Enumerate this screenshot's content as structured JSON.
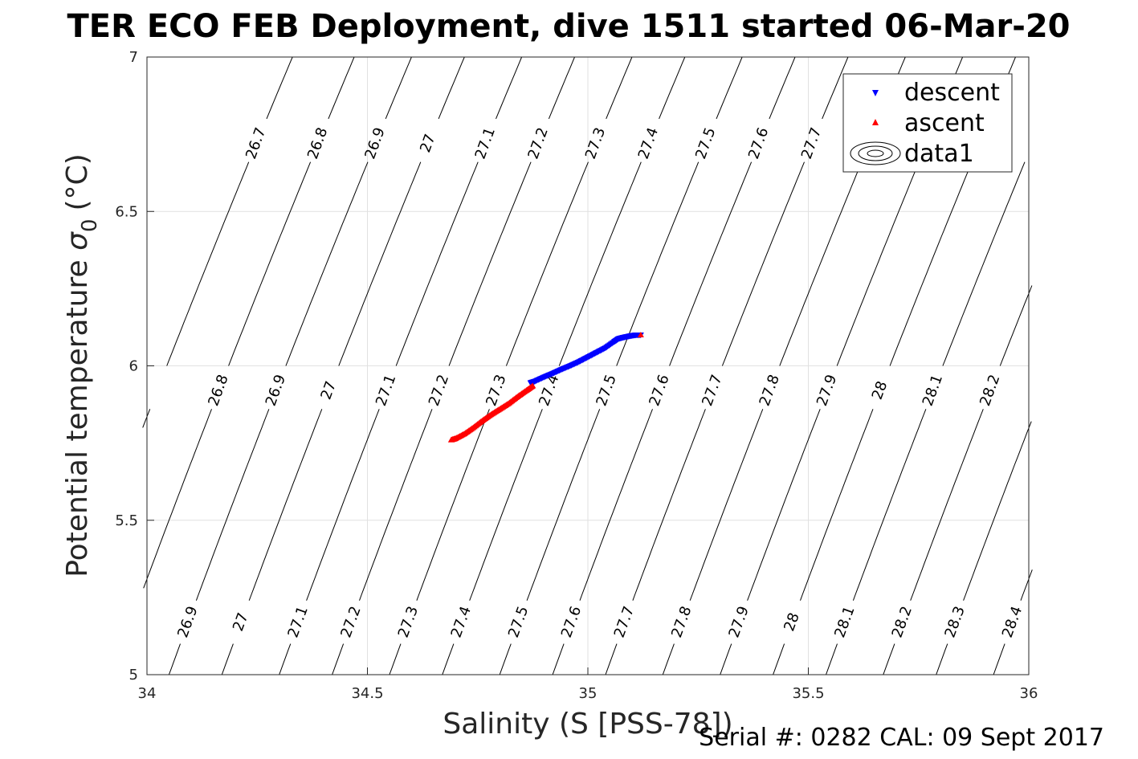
{
  "chart_data": {
    "type": "scatter",
    "title": "TER ECO FEB Deployment, dive 1511 started 06-Mar-20",
    "xlabel": "Salinity (S [PSS-78])",
    "ylabel_main": "Potential temperature",
    "ylabel_sym": "σ",
    "ylabel_sub": "0",
    "ylabel_unit": "(°C)",
    "xlim": [
      34,
      36
    ],
    "ylim": [
      5,
      7
    ],
    "xticks": [
      "34",
      "34.5",
      "35",
      "35.5",
      "36"
    ],
    "yticks": [
      "5",
      "5.5",
      "6",
      "6.5",
      "7"
    ],
    "grid": true,
    "legend_position": "top-right",
    "legend": [
      "descent",
      "ascent",
      "data1"
    ],
    "footer": "Serial #: 0282  CAL: 09 Sept 2017",
    "colors": {
      "descent": "#0000ff",
      "ascent": "#ff0000",
      "contour": "#000000",
      "grid": "#e1e1e1"
    },
    "series": [
      {
        "name": "descent",
        "marker": "triangle-down",
        "color": "#0000ff",
        "points": [
          [
            34.87,
            5.945
          ],
          [
            34.88,
            5.95
          ],
          [
            34.9,
            5.963
          ],
          [
            34.92,
            5.975
          ],
          [
            34.94,
            5.988
          ],
          [
            34.96,
            6.0
          ],
          [
            34.98,
            6.013
          ],
          [
            35.0,
            6.028
          ],
          [
            35.02,
            6.043
          ],
          [
            35.04,
            6.058
          ],
          [
            35.06,
            6.078
          ],
          [
            35.07,
            6.088
          ],
          [
            35.08,
            6.092
          ],
          [
            35.09,
            6.095
          ],
          [
            35.1,
            6.098
          ],
          [
            35.11,
            6.1
          ],
          [
            35.12,
            6.1
          ]
        ]
      },
      {
        "name": "ascent",
        "marker": "triangle-up",
        "color": "#ff0000",
        "points": [
          [
            34.69,
            5.76
          ],
          [
            34.7,
            5.765
          ],
          [
            34.72,
            5.78
          ],
          [
            34.74,
            5.8
          ],
          [
            34.76,
            5.822
          ],
          [
            34.78,
            5.842
          ],
          [
            34.8,
            5.86
          ],
          [
            34.82,
            5.878
          ],
          [
            34.84,
            5.9
          ],
          [
            34.86,
            5.92
          ],
          [
            34.875,
            5.935
          ],
          [
            35.12,
            6.1
          ]
        ]
      }
    ],
    "contours": [
      {
        "label": "26.7",
        "x": [
          34.03,
          34.2
        ]
      },
      {
        "label": "26.8",
        "x": [
          34.1,
          34.32
        ],
        "mid": 34.04
      },
      {
        "label": "26.9",
        "x": [
          34.23,
          34.43
        ],
        "mid": 34.17,
        "bottom": 34.05
      },
      {
        "label": "27",
        "x": [
          34.36,
          34.55
        ],
        "mid": 34.3,
        "bottom": 34.17
      },
      {
        "label": "27.1",
        "x": [
          34.48,
          34.67
        ],
        "mid": 34.42,
        "bottom": 34.3
      },
      {
        "label": "27.2",
        "x": [
          34.6,
          34.8
        ],
        "mid": 34.55,
        "bottom": 34.42
      },
      {
        "label": "27.3",
        "x": [
          34.73,
          34.92
        ],
        "mid": 34.67,
        "bottom": 34.55
      },
      {
        "label": "27.4",
        "x": [
          34.85,
          35.05
        ],
        "mid": 34.8,
        "bottom": 34.67
      },
      {
        "label": "27.5",
        "x": [
          34.98,
          35.17
        ],
        "mid": 34.92,
        "bottom": 34.8
      },
      {
        "label": "27.6",
        "x": [
          35.1,
          35.29
        ],
        "mid": 35.04,
        "bottom": 34.92
      },
      {
        "label": "27.7",
        "x": [
          35.23,
          35.42
        ],
        "mid": 35.17,
        "bottom": 35.04
      },
      {
        "label": "27.8",
        "x": [
          35.35,
          35.54
        ],
        "mid": 35.29,
        "bottom": 35.17
      },
      {
        "label": "27.9",
        "x": [
          35.47,
          35.67
        ],
        "mid": 35.42,
        "bottom": 35.3
      },
      {
        "label": "28",
        "mid": 35.54,
        "bottom": 35.42
      },
      {
        "label": "28.1",
        "mid": 35.67,
        "bottom": 35.54
      },
      {
        "label": "28.2",
        "mid": 35.79,
        "bottom": 35.67
      },
      {
        "label": "28.3",
        "mid": 35.92,
        "bottom": 35.79
      },
      {
        "label": "28.4",
        "bottom": 35.92
      }
    ]
  }
}
